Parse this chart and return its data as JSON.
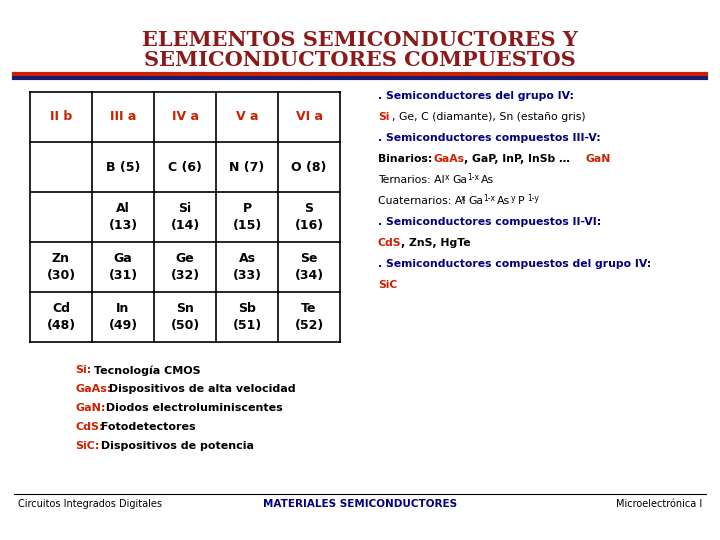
{
  "title_line1": "ELEMENTOS SEMICONDUCTORES Y",
  "title_line2": "SEMICONDUCTORES COMPUESTOS",
  "title_color": "#8B1A1A",
  "bg_color": "#FFFFFF",
  "table_headers": [
    "II b",
    "III a",
    "IV a",
    "V a",
    "VI a"
  ],
  "header_color": "#CC2200",
  "table_rows": [
    [
      "",
      "B (5)",
      "C (6)",
      "N (7)",
      "O (8)"
    ],
    [
      "",
      "Al\n(13)",
      "Si\n(14)",
      "P\n(15)",
      "S\n(16)"
    ],
    [
      "Zn\n(30)",
      "Ga\n(31)",
      "Ge\n(32)",
      "As\n(33)",
      "Se\n(34)"
    ],
    [
      "Cd\n(48)",
      "In\n(49)",
      "Sn\n(50)",
      "Sb\n(51)",
      "Te\n(52)"
    ]
  ],
  "bottom_items": [
    {
      "label": "Si:",
      "rest": " Tecnología CMOS"
    },
    {
      "label": "GaAs:",
      "rest": " Dispositivos de alta velocidad"
    },
    {
      "label": "GaN:",
      "rest": " Diodos electroluminiscentes"
    },
    {
      "label": "CdS:",
      "rest": " Fotodetectores"
    },
    {
      "label": "SiC:",
      "rest": " Dispositivos de potencia"
    }
  ],
  "footer_left": "Circuitos Integrados Digitales",
  "footer_center": "MATERIALES SEMICONDUCTORES",
  "footer_right": "Microelectrónica I",
  "line_color_red": "#CC2200",
  "line_color_dark": "#1A1A6E",
  "dark_blue": "#000080",
  "red_color": "#CC2200",
  "black": "#000000"
}
